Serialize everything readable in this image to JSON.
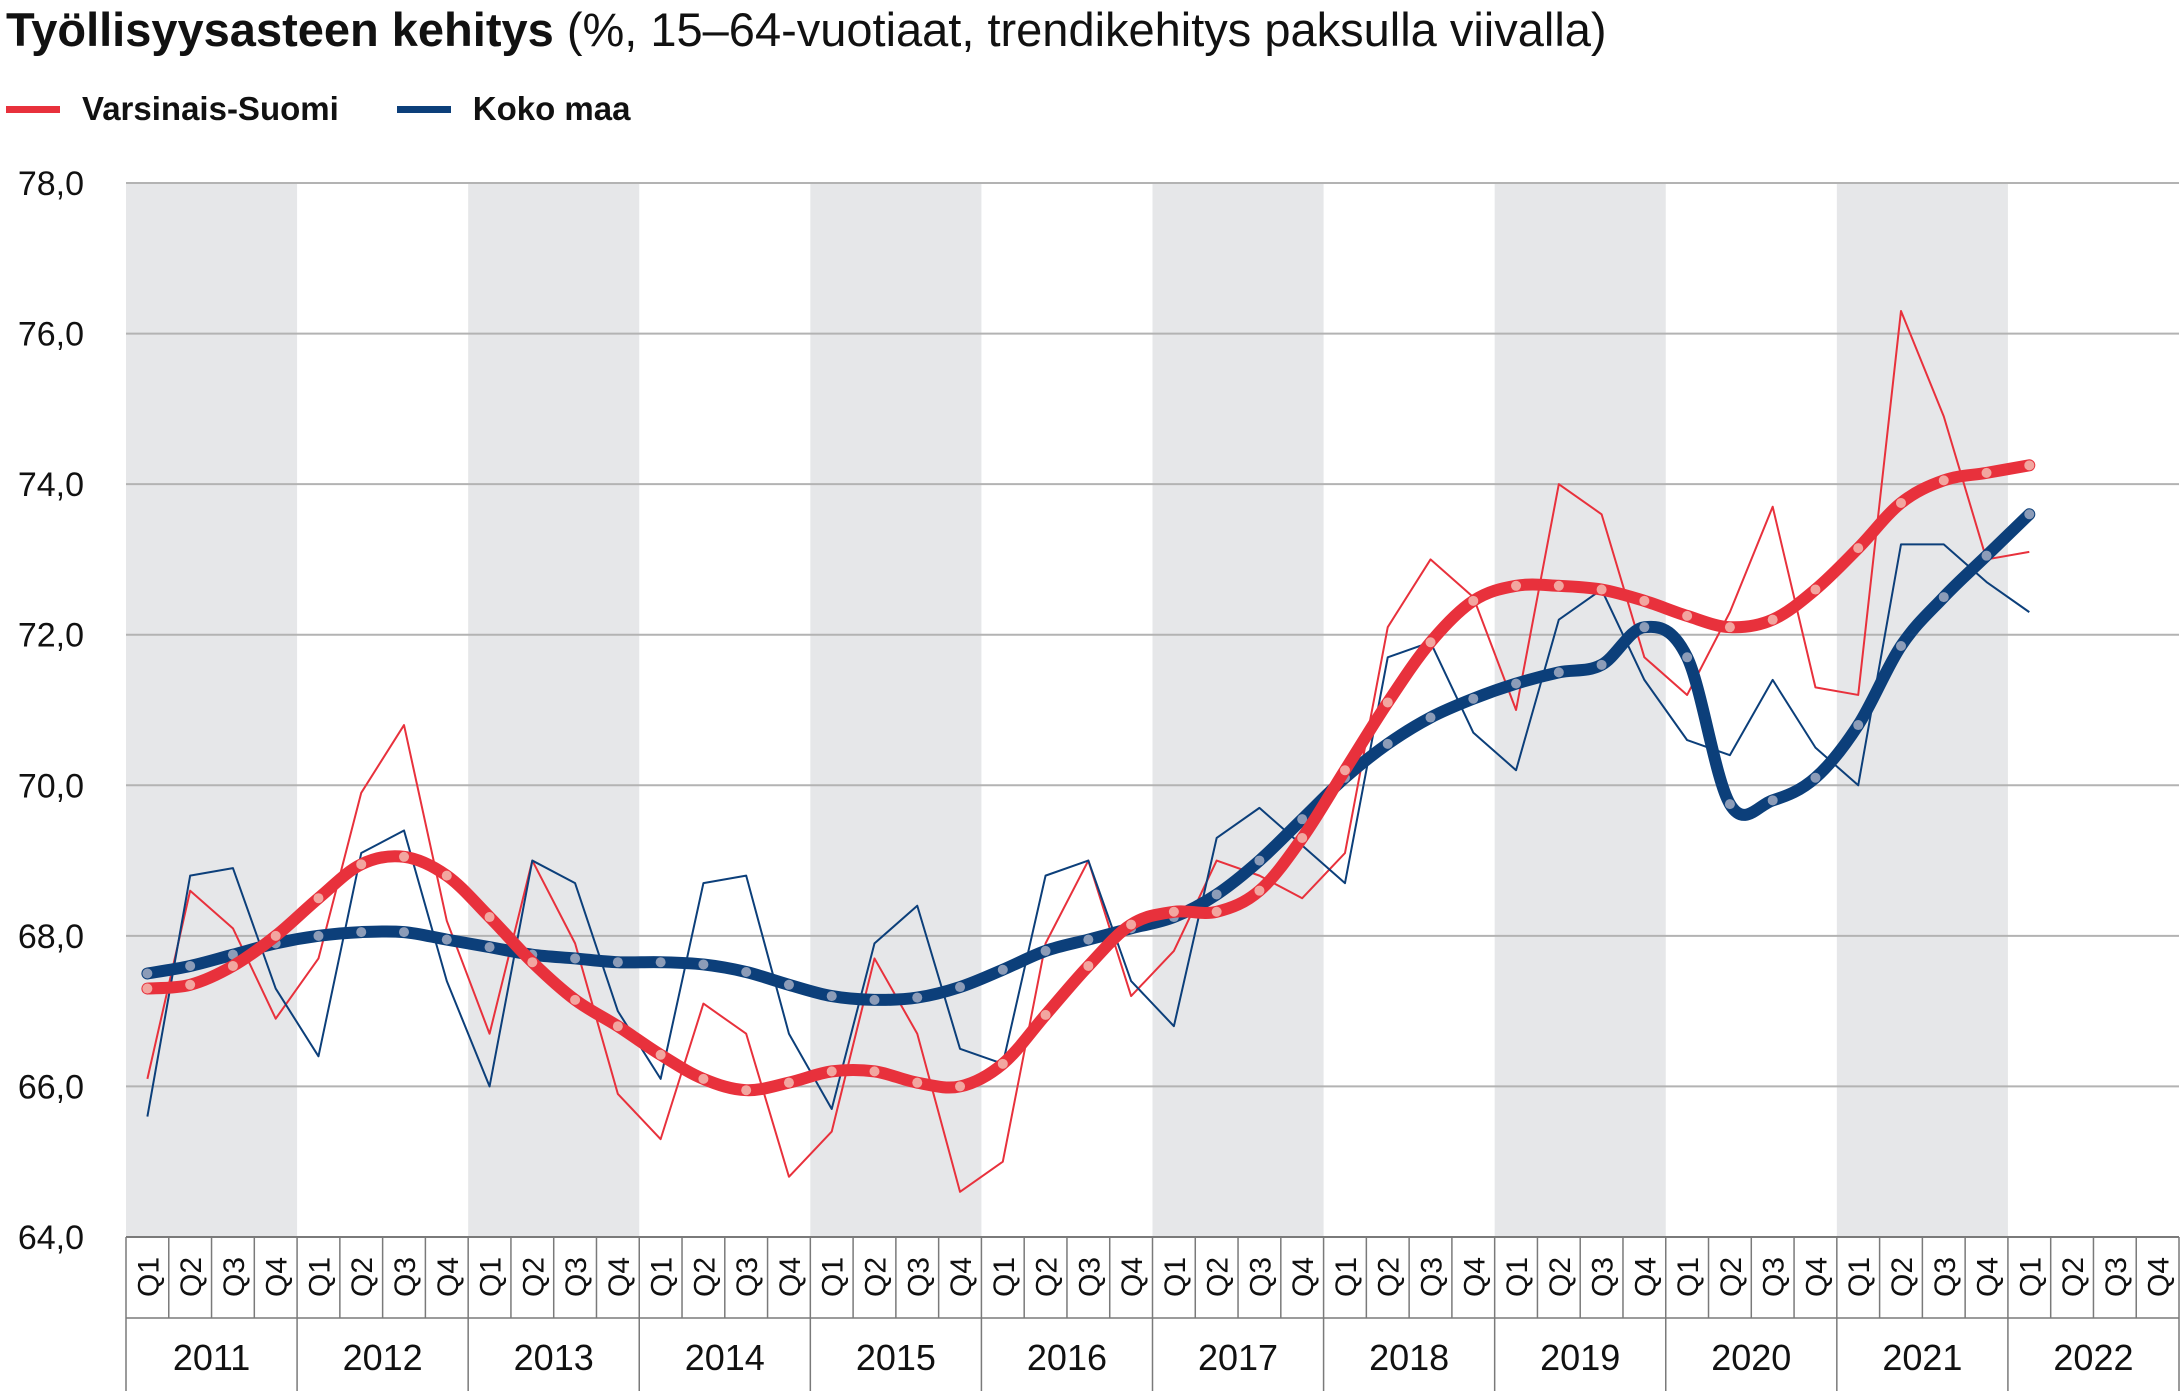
{
  "title": {
    "main": "Työllisyysasteen kehitys",
    "sub": " (%, 15–64-vuotiaat, trendikehitys paksulla viivalla)"
  },
  "legend": [
    {
      "label": "Varsinais-Suomi",
      "color": "#e8313c"
    },
    {
      "label": "Koko maa",
      "color": "#0c3f7a"
    }
  ],
  "chart_data": {
    "type": "line",
    "title": "Työllisyysasteen kehitys",
    "subtitle": "(%, 15–64-vuotiaat, trendikehitys paksulla viivalla)",
    "xlabel": "",
    "ylabel": "",
    "ylim": [
      64,
      78
    ],
    "yticks": [
      "64,0",
      "66,0",
      "68,0",
      "70,0",
      "72,0",
      "74,0",
      "76,0",
      "78,0"
    ],
    "quarters": [
      "Q1",
      "Q2",
      "Q3",
      "Q4"
    ],
    "years": [
      "2011",
      "2012",
      "2013",
      "2014",
      "2015",
      "2016",
      "2017",
      "2018",
      "2019",
      "2020",
      "2021",
      "2022"
    ],
    "grid": true,
    "shaded_years": [
      "2011",
      "2013",
      "2015",
      "2017",
      "2019",
      "2021"
    ],
    "colors": {
      "shade": "#e6e7e9",
      "grid": "#b3b3b3",
      "trend_dot_red": "#f2a6a0",
      "trend_dot_blue": "#8c9cb8"
    },
    "series": [
      {
        "name": "Varsinais-Suomi",
        "style": "thin",
        "color": "#e8313c",
        "values": [
          66.1,
          68.6,
          68.1,
          66.9,
          67.7,
          69.9,
          70.8,
          68.2,
          66.7,
          69.0,
          67.9,
          65.9,
          65.3,
          67.1,
          66.7,
          64.8,
          65.4,
          67.7,
          66.7,
          64.6,
          65.0,
          67.9,
          69.0,
          67.2,
          67.8,
          69.0,
          68.8,
          68.5,
          69.1,
          72.1,
          73.0,
          72.5,
          71.0,
          74.0,
          73.6,
          71.7,
          71.2,
          72.3,
          73.7,
          71.3,
          71.2,
          76.3,
          74.9,
          73.0,
          73.1
        ]
      },
      {
        "name": "Koko maa",
        "style": "thin",
        "color": "#0c3f7a",
        "values": [
          65.6,
          68.8,
          68.9,
          67.3,
          66.4,
          69.1,
          69.4,
          67.4,
          66.0,
          69.0,
          68.7,
          67.0,
          66.1,
          68.7,
          68.8,
          66.7,
          65.7,
          67.9,
          68.4,
          66.5,
          66.3,
          68.8,
          69.0,
          67.4,
          66.8,
          69.3,
          69.7,
          69.2,
          68.7,
          71.7,
          71.9,
          70.7,
          70.2,
          72.2,
          72.6,
          71.4,
          70.6,
          70.4,
          71.4,
          70.5,
          70.0,
          73.2,
          73.2,
          72.7,
          72.3
        ]
      },
      {
        "name": "Koko maa",
        "style": "trend",
        "color": "#0c3f7a",
        "values": [
          67.5,
          67.6,
          67.75,
          67.9,
          68.0,
          68.05,
          68.05,
          67.95,
          67.85,
          67.75,
          67.7,
          67.65,
          67.65,
          67.62,
          67.52,
          67.35,
          67.2,
          67.15,
          67.18,
          67.32,
          67.55,
          67.8,
          67.95,
          68.1,
          68.25,
          68.55,
          69.0,
          69.55,
          70.1,
          70.55,
          70.9,
          71.15,
          71.35,
          71.5,
          71.6,
          72.1,
          71.7,
          69.75,
          69.8,
          70.1,
          70.8,
          71.85,
          72.5,
          73.05,
          73.6
        ]
      },
      {
        "name": "Varsinais-Suomi",
        "style": "trend",
        "color": "#e8313c",
        "values": [
          67.3,
          67.35,
          67.6,
          68.0,
          68.5,
          68.95,
          69.05,
          68.8,
          68.25,
          67.65,
          67.15,
          66.8,
          66.42,
          66.1,
          65.95,
          66.05,
          66.2,
          66.2,
          66.05,
          66.0,
          66.3,
          66.95,
          67.6,
          68.15,
          68.32,
          68.32,
          68.6,
          69.3,
          70.2,
          71.1,
          71.9,
          72.45,
          72.65,
          72.65,
          72.6,
          72.45,
          72.25,
          72.1,
          72.2,
          72.6,
          73.15,
          73.75,
          74.05,
          74.15,
          74.25
        ]
      }
    ]
  }
}
